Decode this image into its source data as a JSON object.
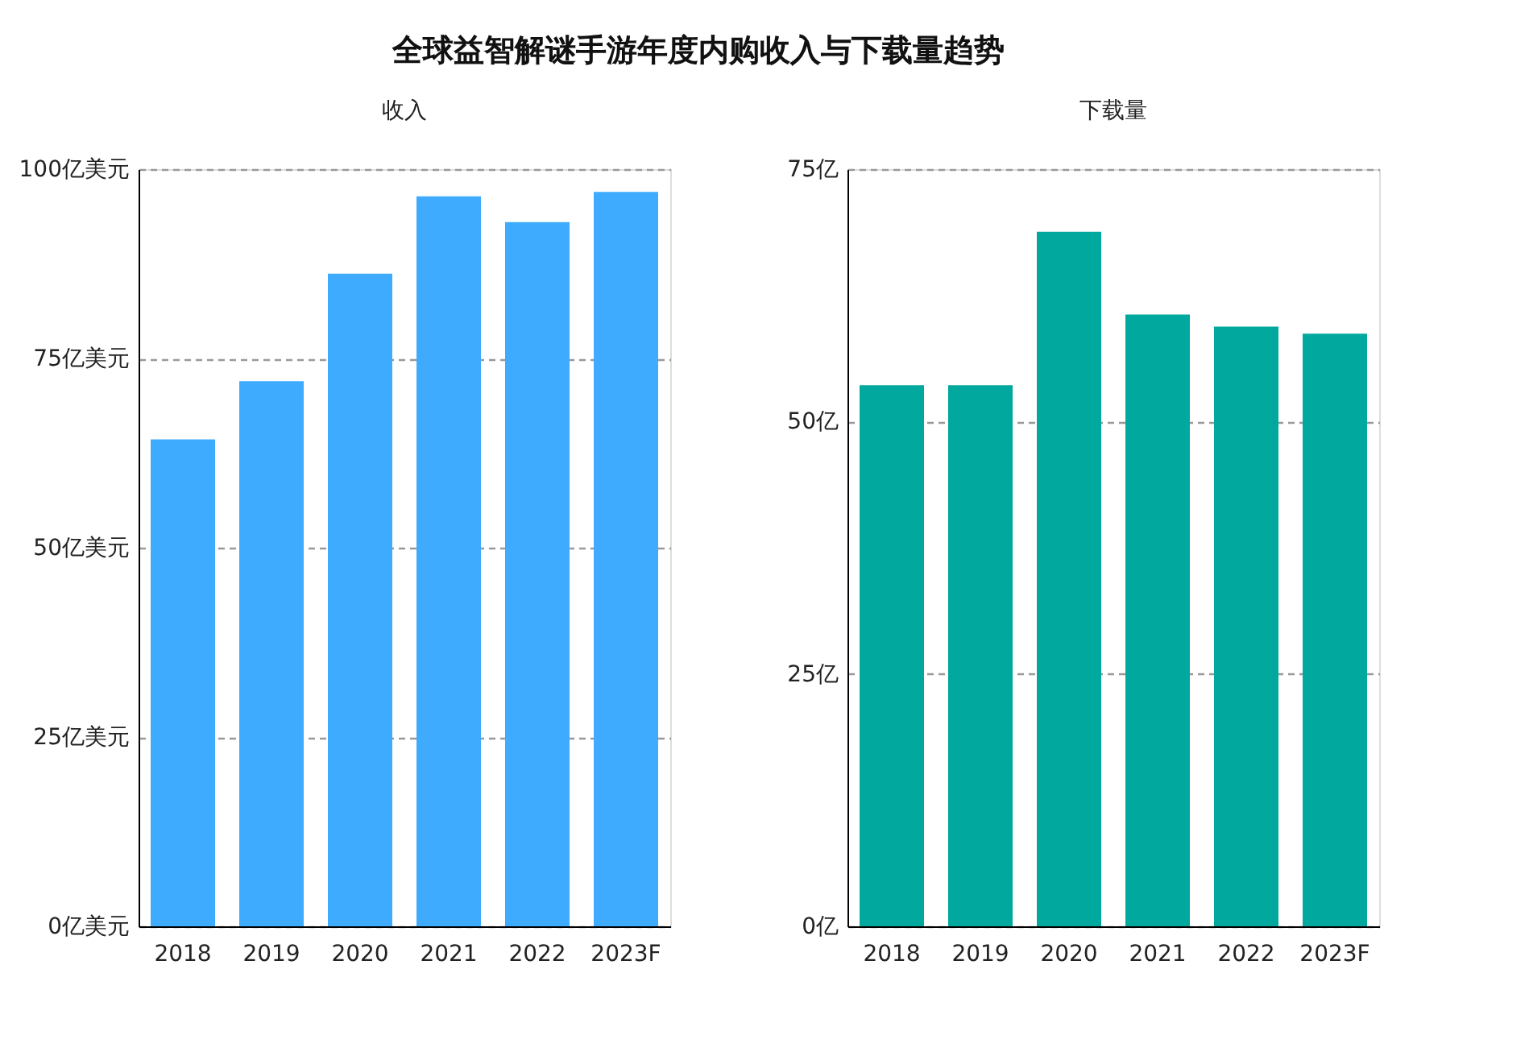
{
  "chart_data": [
    {
      "type": "bar",
      "title": "全球益智解谜手游年度内购收入与下载量趋势",
      "subtitle": "收入",
      "categories": [
        "2018",
        "2019",
        "2020",
        "2021",
        "2022",
        "2023F"
      ],
      "series": [
        {
          "color": "#3eabff",
          "values": [
            64.3,
            72.0,
            86.2,
            96.4,
            93.0,
            97.0
          ]
        }
      ],
      "ylim": [
        0,
        100
      ],
      "yticks": [
        {
          "value": 0,
          "label": "0亿美元"
        },
        {
          "value": 25,
          "label": "25亿美元"
        },
        {
          "value": 50,
          "label": "50亿美元"
        },
        {
          "value": 75,
          "label": "75亿美元"
        },
        {
          "value": 100,
          "label": "100亿美元"
        }
      ],
      "grid": "y"
    },
    {
      "type": "bar",
      "subtitle": "下载量",
      "categories": [
        "2018",
        "2019",
        "2020",
        "2021",
        "2022",
        "2023F"
      ],
      "series": [
        {
          "color": "#00a89d",
          "values": [
            53.6,
            53.6,
            68.8,
            60.6,
            59.4,
            58.7
          ]
        }
      ],
      "ylim": [
        0,
        75
      ],
      "yticks": [
        {
          "value": 0,
          "label": "0亿"
        },
        {
          "value": 25,
          "label": "25亿"
        },
        {
          "value": 50,
          "label": "50亿"
        },
        {
          "value": 75,
          "label": "75亿"
        }
      ],
      "grid": "y"
    }
  ]
}
